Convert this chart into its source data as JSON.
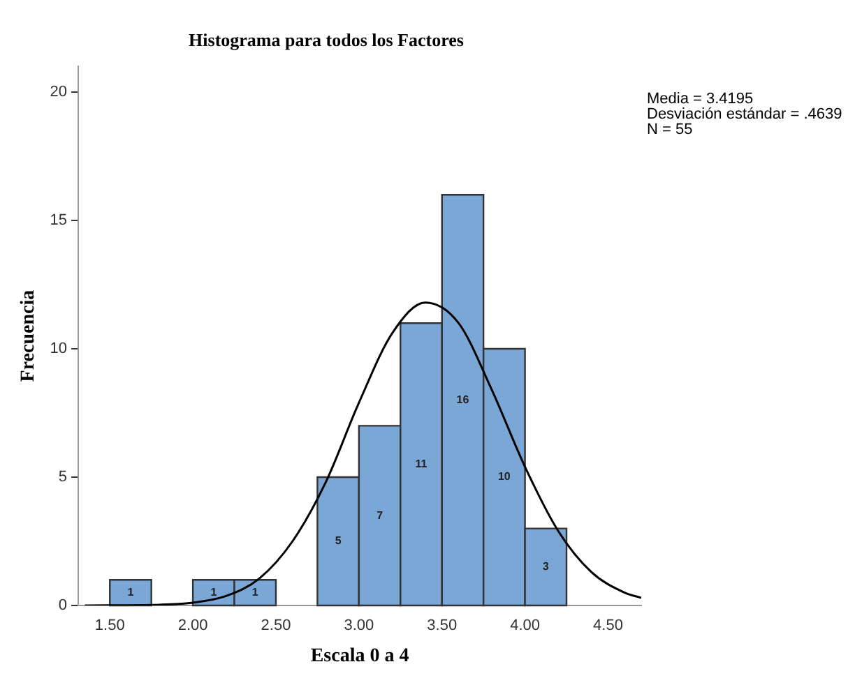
{
  "chart_data": {
    "type": "histogram",
    "title": "Histograma para todos los Factores",
    "xlabel": "Escala 0 a 4",
    "ylabel": "Frecuencia",
    "bins": [
      1.5,
      1.75,
      2.0,
      2.25,
      2.5,
      2.75,
      3.0,
      3.25,
      3.5,
      3.75,
      4.0,
      4.25
    ],
    "values": [
      1,
      0,
      1,
      1,
      0,
      5,
      7,
      11,
      16,
      10,
      3
    ],
    "color": "#7aa7d6",
    "value_labels": [
      "1",
      null,
      "1",
      "1",
      null,
      "5",
      "7",
      "11",
      "16",
      "10",
      "3"
    ],
    "series": [
      {
        "type": "line",
        "color": "#000000",
        "x": [
          1.35,
          1.8,
          2.0,
          2.2,
          2.4,
          2.6,
          2.8,
          3.0,
          3.2,
          3.4,
          3.6,
          3.8,
          4.0,
          4.2,
          4.4,
          4.6,
          4.7
        ],
        "values": [
          0.0,
          0.03,
          0.11,
          0.37,
          1.05,
          2.5,
          4.8,
          7.9,
          10.6,
          11.8,
          11.0,
          8.4,
          5.4,
          2.9,
          1.3,
          0.5,
          0.3
        ]
      }
    ],
    "marker": "none",
    "grid": false,
    "legend": false,
    "xlim": [
      1.31,
      4.7
    ],
    "xticks": [
      {
        "value": 1.5,
        "label": "1.50"
      },
      {
        "value": 2.0,
        "label": "2.00"
      },
      {
        "value": 2.5,
        "label": "2.50"
      },
      {
        "value": 3.0,
        "label": "3.00"
      },
      {
        "value": 3.5,
        "label": "3.50"
      },
      {
        "value": 4.0,
        "label": "4.00"
      },
      {
        "value": 4.5,
        "label": "4.50"
      }
    ],
    "ylim": [
      0,
      21
    ],
    "yticks": [
      0,
      5,
      10,
      15,
      20
    ],
    "annotations": [
      "Media = 3.4195",
      "Desviación estándar = .4639",
      "N = 55"
    ]
  }
}
